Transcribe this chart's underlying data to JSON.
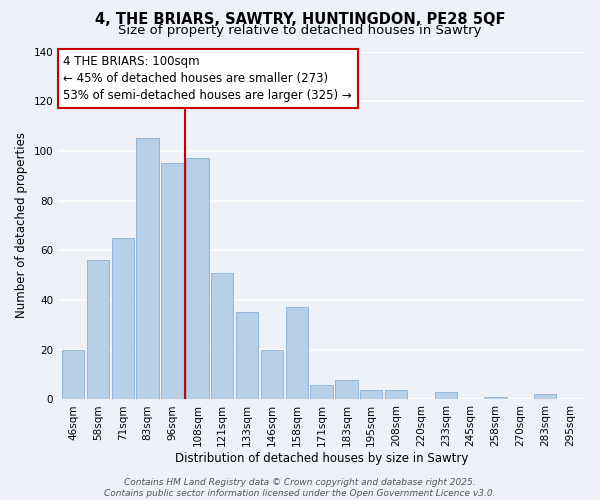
{
  "title": "4, THE BRIARS, SAWTRY, HUNTINGDON, PE28 5QF",
  "subtitle": "Size of property relative to detached houses in Sawtry",
  "xlabel": "Distribution of detached houses by size in Sawtry",
  "ylabel": "Number of detached properties",
  "bar_labels": [
    "46sqm",
    "58sqm",
    "71sqm",
    "83sqm",
    "96sqm",
    "108sqm",
    "121sqm",
    "133sqm",
    "146sqm",
    "158sqm",
    "171sqm",
    "183sqm",
    "195sqm",
    "208sqm",
    "220sqm",
    "233sqm",
    "245sqm",
    "258sqm",
    "270sqm",
    "283sqm",
    "295sqm"
  ],
  "bar_values": [
    20,
    56,
    65,
    105,
    95,
    97,
    51,
    35,
    20,
    37,
    6,
    8,
    4,
    4,
    0,
    3,
    0,
    1,
    0,
    2,
    0
  ],
  "bar_color": "#b8cfe8",
  "bar_edge_color": "#8aafd8",
  "vline_x": 4.5,
  "vline_color": "#cc0000",
  "annotation_lines": [
    "4 THE BRIARS: 100sqm",
    "← 45% of detached houses are smaller (273)",
    "53% of semi-detached houses are larger (325) →"
  ],
  "annotation_box_color": "#ffffff",
  "annotation_box_edge": "#cc0000",
  "ylim": [
    0,
    140
  ],
  "yticks": [
    0,
    20,
    40,
    60,
    80,
    100,
    120,
    140
  ],
  "footer_lines": [
    "Contains HM Land Registry data © Crown copyright and database right 2025.",
    "Contains public sector information licensed under the Open Government Licence v3.0."
  ],
  "background_color": "#eef2f8",
  "grid_color": "#ffffff",
  "title_fontsize": 10.5,
  "subtitle_fontsize": 9.5,
  "axis_label_fontsize": 8.5,
  "tick_fontsize": 7.5,
  "annotation_fontsize": 8.5,
  "footer_fontsize": 6.5
}
